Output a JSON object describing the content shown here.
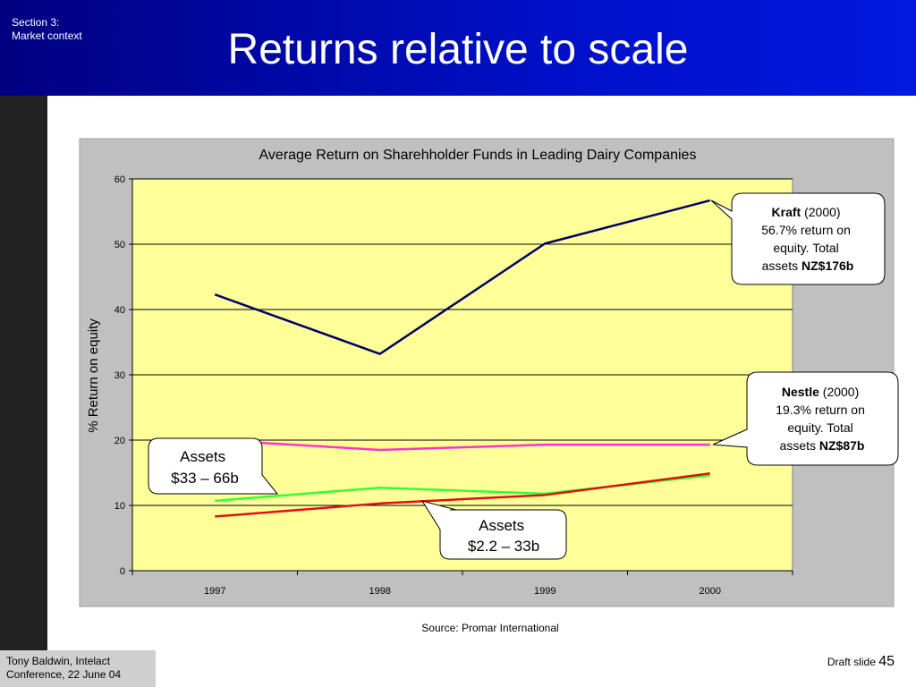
{
  "header": {
    "section_line1": "Section 3:",
    "section_line2": "Market context",
    "title": "Returns relative to scale"
  },
  "colors": {
    "header_blue": "#0010c8",
    "plot_bg": "#ffff99",
    "chart_bg": "#c0c0c0",
    "kraft": "#000066",
    "nestle": "#ff33cc",
    "green_series": "#33ff33",
    "red_series": "#dd1111"
  },
  "chart_data": {
    "type": "line",
    "title": "Average Return on Sharehholder Funds in Leading Dairy Companies",
    "xlabel": "",
    "ylabel": "% Return on equity",
    "categories": [
      "1997",
      "1998",
      "1999",
      "2000"
    ],
    "ylim": [
      0,
      60
    ],
    "yticks": [
      "0",
      "10",
      "20",
      "30",
      "40",
      "50",
      "60"
    ],
    "grid": true,
    "series": [
      {
        "color": "#000066",
        "values": [
          42.3,
          33.2,
          50.1,
          56.7
        ]
      },
      {
        "color": "#ff33cc",
        "values": [
          20.0,
          18.5,
          19.3,
          19.3
        ]
      },
      {
        "color": "#33ff33",
        "values": [
          10.7,
          12.7,
          11.8,
          14.6
        ]
      },
      {
        "color": "#dd1111",
        "values": [
          8.3,
          10.3,
          11.6,
          14.9
        ]
      }
    ]
  },
  "callouts": {
    "kraft": {
      "bold": "Kraft",
      "line1": " (2000)",
      "line2": "56.7% return on",
      "line3": "equity.  Total",
      "line4": "assets ",
      "bold2": "NZ$176b"
    },
    "nestle": {
      "bold": "Nestle",
      "line1": " (2000)",
      "line2": "19.3% return on",
      "line3": "equity.  Total",
      "line4": "assets ",
      "bold2": "NZ$87b"
    },
    "assets_large": {
      "line1": "Assets",
      "line2": "$33 – 66b"
    },
    "assets_small": {
      "line1": "Assets",
      "line2": "$2.2 – 33b"
    }
  },
  "source": "Source: Promar International",
  "footer": {
    "line1": "Tony Baldwin, Intelact",
    "line2": "Conference, 22 June 04",
    "draft": "Draft slide ",
    "page": "45"
  }
}
